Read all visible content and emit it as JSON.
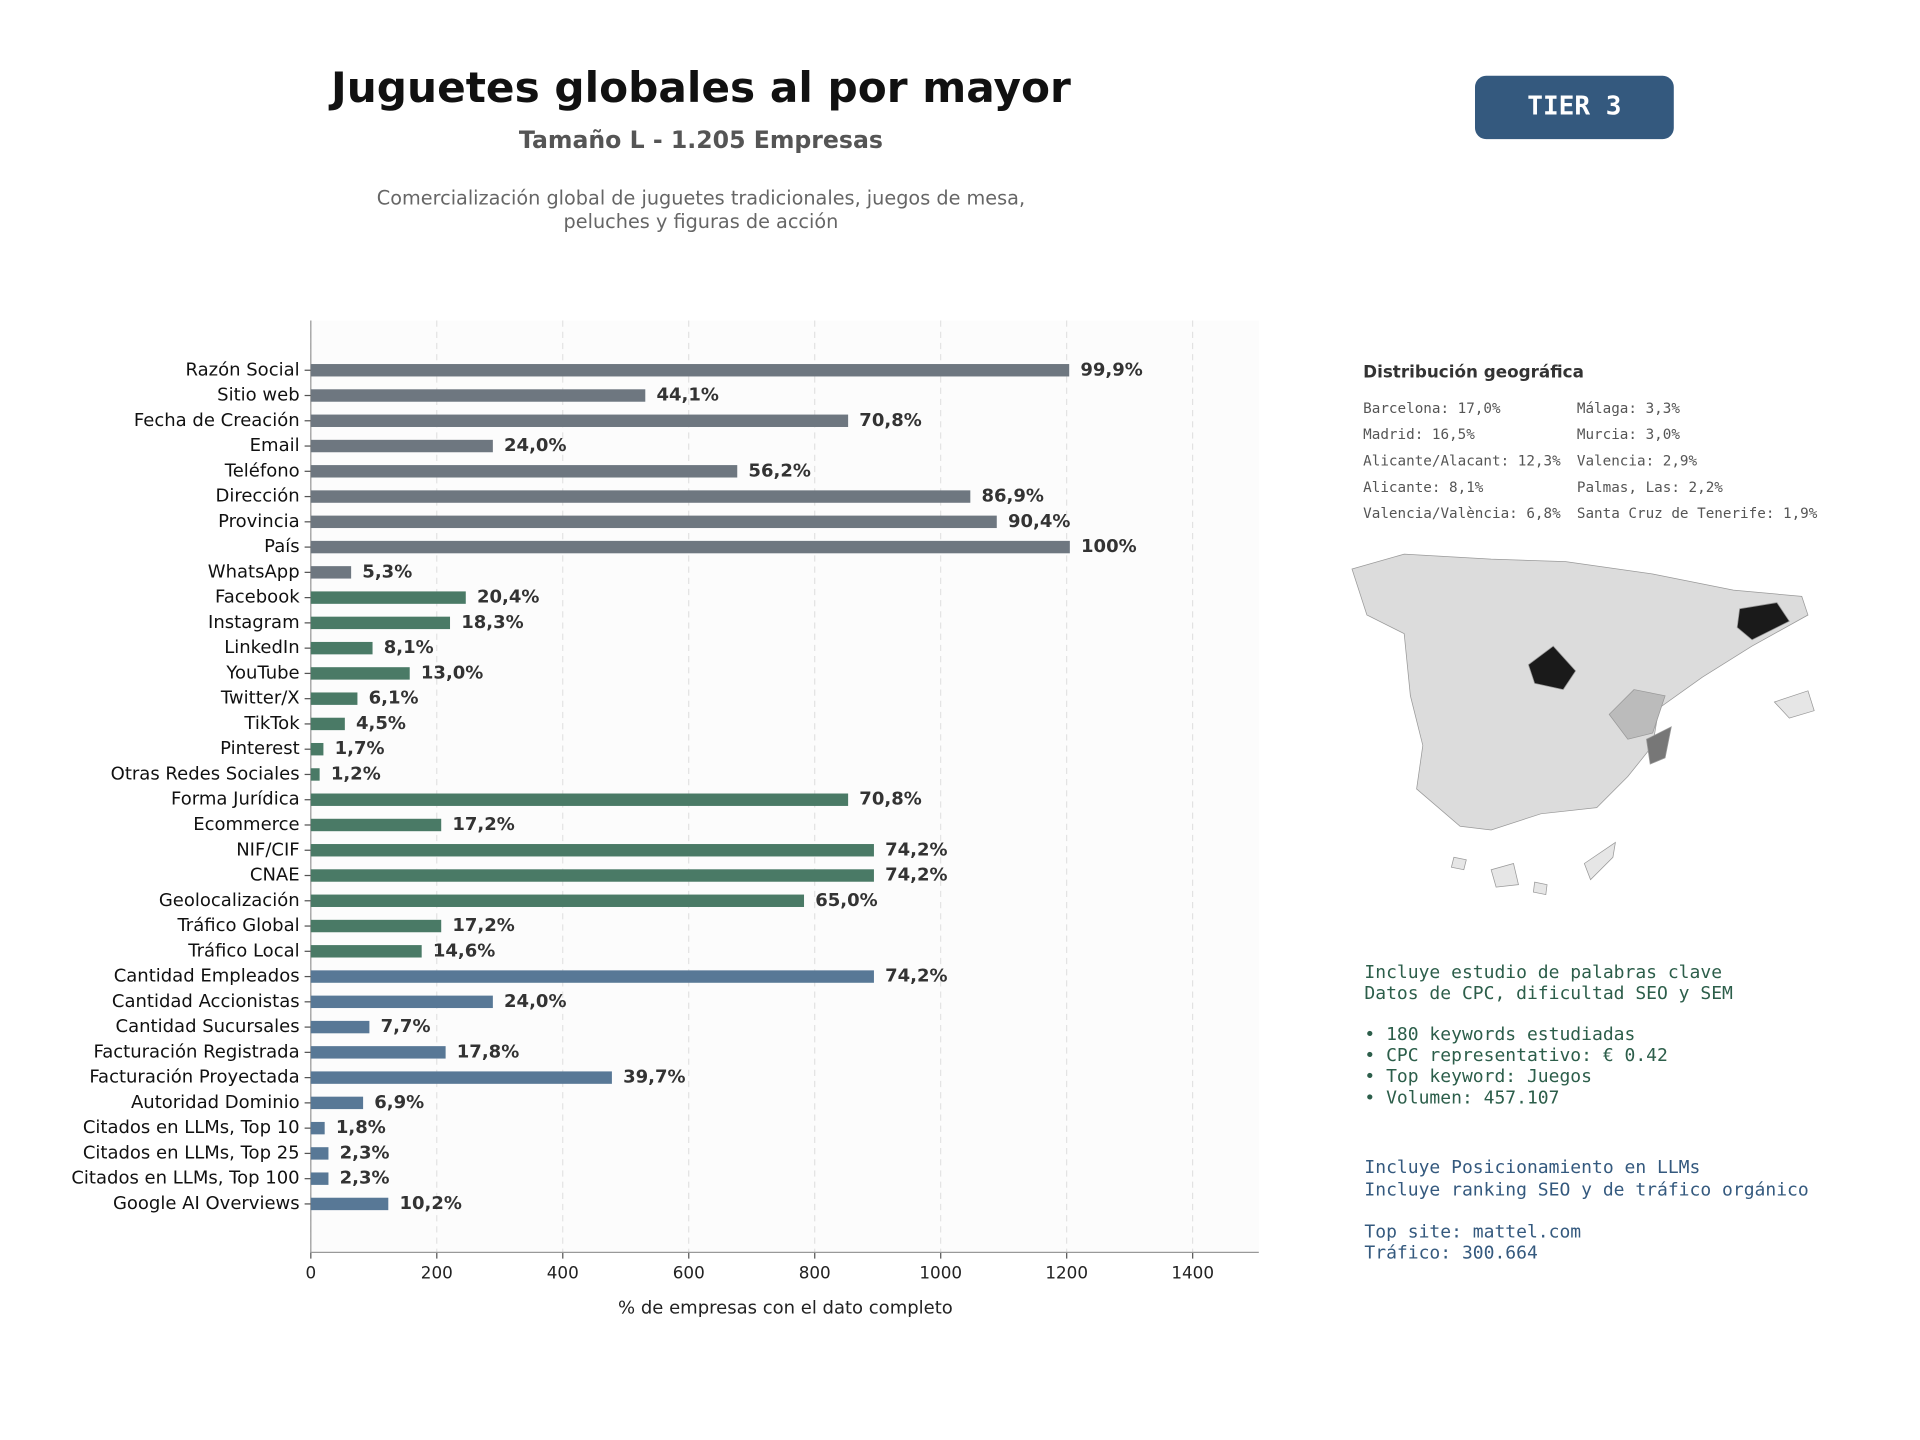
{
  "chart_data": {
    "type": "barh",
    "title": "Juguetes globales al por mayor",
    "subtitle": "Tamaño L - 1.205 Empresas",
    "description": [
      "Comercialización global de juguetes tradicionales, juegos de mesa,",
      "peluches y figuras de acción"
    ],
    "xlabel": "% de empresas con el dato completo",
    "categories": [
      "Razón Social",
      "Sitio web",
      "Fecha de Creación",
      "Email",
      "Teléfono",
      "Dirección",
      "Provincia",
      "País",
      "WhatsApp",
      "Facebook",
      "Instagram",
      "LinkedIn",
      "YouTube",
      "Twitter/X",
      "TikTok",
      "Pinterest",
      "Otras Redes Sociales",
      "Forma Jurídica",
      "Ecommerce",
      "NIF/CIF",
      "CNAE",
      "Geolocalización",
      "Tráfico Global",
      "Tráfico Local",
      "Cantidad Empleados",
      "Cantidad Accionistas",
      "Cantidad Sucursales",
      "Facturación Registrada",
      "Facturación Proyectada",
      "Autoridad Dominio",
      "Citados en LLMs, Top 10",
      "Citados en LLMs, Top 25",
      "Citados en LLMs, Top 100",
      "Google AI Overviews"
    ],
    "values": [
      1204,
      531,
      853,
      289,
      677,
      1047,
      1089,
      1205,
      64,
      246,
      221,
      98,
      157,
      74,
      54,
      20,
      14,
      853,
      207,
      894,
      894,
      783,
      207,
      176,
      894,
      289,
      93,
      214,
      478,
      83,
      22,
      28,
      28,
      123
    ],
    "value_labels": [
      "99,9%",
      "44,1%",
      "70,8%",
      "24,0%",
      "56,2%",
      "86,9%",
      "90,4%",
      "100%",
      "5,3%",
      "20,4%",
      "18,3%",
      "8,1%",
      "13,0%",
      "6,1%",
      "4,5%",
      "1,7%",
      "1,2%",
      "70,8%",
      "17,2%",
      "74,2%",
      "74,2%",
      "65,0%",
      "17,2%",
      "14,6%",
      "74,2%",
      "24,0%",
      "7,7%",
      "17,8%",
      "39,7%",
      "6,9%",
      "1,8%",
      "2,3%",
      "2,3%",
      "10,2%"
    ],
    "colors": [
      "#6e7780",
      "#6e7780",
      "#6e7780",
      "#6e7780",
      "#6e7780",
      "#6e7780",
      "#6e7780",
      "#6e7780",
      "#6e7780",
      "#4a7a66",
      "#4a7a66",
      "#4a7a66",
      "#4a7a66",
      "#4a7a66",
      "#4a7a66",
      "#4a7a66",
      "#4a7a66",
      "#4a7a66",
      "#4a7a66",
      "#4a7a66",
      "#4a7a66",
      "#4a7a66",
      "#4a7a66",
      "#4a7a66",
      "#587896",
      "#587896",
      "#587896",
      "#587896",
      "#587896",
      "#587896",
      "#587896",
      "#587896",
      "#587896",
      "#587896"
    ],
    "xlim": [
      0,
      1505
    ],
    "xticks": [
      0,
      200,
      400,
      600,
      800,
      1000,
      1200,
      1400
    ],
    "grid": true
  },
  "tier": "TIER 3",
  "geo": {
    "title": "Distribución geográfica",
    "items": [
      "Barcelona: 17,0%",
      "Madrid: 16,5%",
      "Alicante/Alacant: 12,3%",
      "Alicante: 8,1%",
      "Valencia/València: 6,8%",
      "Málaga: 3,3%",
      "Murcia: 3,0%",
      "Valencia: 2,9%",
      "Palmas, Las: 2,2%",
      "Santa Cruz de Tenerife: 1,9%"
    ]
  },
  "keywords": [
    "Incluye estudio de palabras clave",
    "Datos de CPC, dificultad SEO y SEM",
    "• 180 keywords estudiadas",
    "• CPC representativo: € 0.42",
    "• Top keyword: Juegos",
    "• Volumen: 457.107"
  ],
  "llm": [
    "Incluye Posicionamiento en LLMs",
    "Incluye ranking SEO y de tráfico orgánico",
    "Top site: mattel.com",
    "Tráfico: 300.664"
  ]
}
